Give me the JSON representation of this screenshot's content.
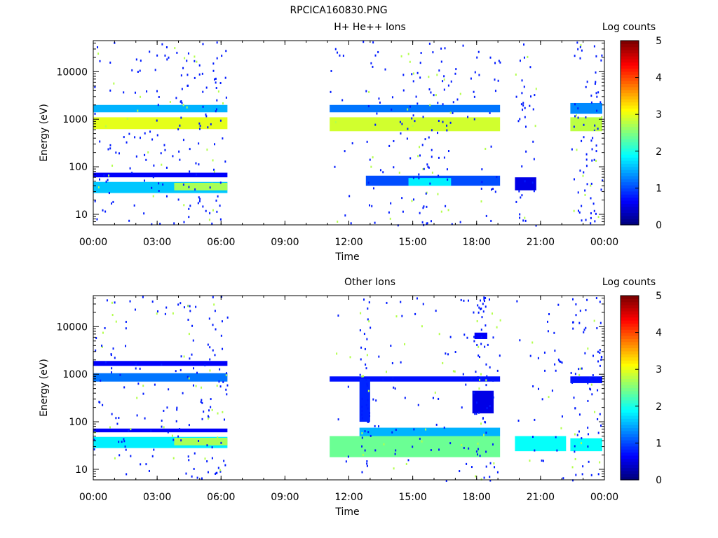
{
  "figure_title": "RPCICA160830.PNG",
  "chart_data": [
    {
      "type": "heatmap",
      "title": "H+ He++ Ions",
      "xlabel": "Time",
      "ylabel": "Energy (eV)",
      "x_ticks": [
        "00:00",
        "03:00",
        "06:00",
        "09:00",
        "12:00",
        "15:00",
        "18:00",
        "21:00",
        "00:00"
      ],
      "y_ticks": [
        "10",
        "100",
        "1000",
        "10000"
      ],
      "y_scale": "log",
      "ylim": [
        6,
        45000
      ],
      "xlim_hours": [
        0,
        24
      ],
      "colorbar": {
        "label": "Log counts",
        "ticks": [
          "0",
          "1",
          "2",
          "3",
          "4",
          "5"
        ],
        "range": [
          0,
          5
        ]
      },
      "bands": [
        {
          "t0": 0.0,
          "t1": 6.3,
          "e0": 1400,
          "e1": 2000,
          "level": 1.5
        },
        {
          "t0": 0.0,
          "t1": 6.3,
          "e0": 620,
          "e1": 1100,
          "level": 3.0
        },
        {
          "t0": 0.0,
          "t1": 6.3,
          "e0": 28,
          "e1": 48,
          "level": 1.6
        },
        {
          "t0": 3.8,
          "t1": 6.3,
          "e0": 32,
          "e1": 46,
          "level": 2.7
        },
        {
          "t0": 0.0,
          "t1": 6.3,
          "e0": 60,
          "e1": 75,
          "level": 0.6
        },
        {
          "t0": 11.1,
          "t1": 19.1,
          "e0": 1400,
          "e1": 2000,
          "level": 1.2
        },
        {
          "t0": 11.1,
          "t1": 19.1,
          "e0": 560,
          "e1": 1100,
          "level": 2.9
        },
        {
          "t0": 12.8,
          "t1": 19.1,
          "e0": 40,
          "e1": 65,
          "level": 1.0
        },
        {
          "t0": 14.8,
          "t1": 16.8,
          "e0": 40,
          "e1": 58,
          "level": 1.8
        },
        {
          "t0": 19.8,
          "t1": 20.8,
          "e0": 32,
          "e1": 60,
          "level": 0.5
        },
        {
          "t0": 22.4,
          "t1": 23.9,
          "e0": 1300,
          "e1": 2200,
          "level": 1.3
        },
        {
          "t0": 22.4,
          "t1": 23.9,
          "e0": 560,
          "e1": 1100,
          "level": 2.8
        }
      ]
    },
    {
      "type": "heatmap",
      "title": "Other Ions",
      "xlabel": "Time",
      "ylabel": "Energy (eV)",
      "x_ticks": [
        "00:00",
        "03:00",
        "06:00",
        "09:00",
        "12:00",
        "15:00",
        "18:00",
        "21:00",
        "00:00"
      ],
      "y_ticks": [
        "10",
        "100",
        "1000",
        "10000"
      ],
      "y_scale": "log",
      "ylim": [
        6,
        45000
      ],
      "xlim_hours": [
        0,
        24
      ],
      "colorbar": {
        "label": "Log counts",
        "ticks": [
          "0",
          "1",
          "2",
          "3",
          "4",
          "5"
        ],
        "range": [
          0,
          5
        ]
      },
      "bands": [
        {
          "t0": 0.0,
          "t1": 6.3,
          "e0": 1500,
          "e1": 1900,
          "level": 0.6
        },
        {
          "t0": 0.0,
          "t1": 6.3,
          "e0": 700,
          "e1": 1050,
          "level": 1.2
        },
        {
          "t0": 0.0,
          "t1": 6.3,
          "e0": 28,
          "e1": 48,
          "level": 1.8
        },
        {
          "t0": 3.8,
          "t1": 6.3,
          "e0": 32,
          "e1": 46,
          "level": 2.7
        },
        {
          "t0": 0.0,
          "t1": 6.3,
          "e0": 60,
          "e1": 72,
          "level": 0.6
        },
        {
          "t0": 11.1,
          "t1": 19.1,
          "e0": 700,
          "e1": 900,
          "level": 0.7
        },
        {
          "t0": 11.1,
          "t1": 19.1,
          "e0": 18,
          "e1": 50,
          "level": 2.4
        },
        {
          "t0": 12.5,
          "t1": 19.1,
          "e0": 50,
          "e1": 75,
          "level": 1.5
        },
        {
          "t0": 12.5,
          "t1": 13.0,
          "e0": 100,
          "e1": 800,
          "level": 0.8
        },
        {
          "t0": 17.8,
          "t1": 18.8,
          "e0": 150,
          "e1": 450,
          "level": 0.5
        },
        {
          "t0": 17.9,
          "t1": 18.5,
          "e0": 5500,
          "e1": 7500,
          "level": 0.6
        },
        {
          "t0": 19.8,
          "t1": 22.2,
          "e0": 24,
          "e1": 50,
          "level": 1.9
        },
        {
          "t0": 22.4,
          "t1": 23.9,
          "e0": 650,
          "e1": 900,
          "level": 0.7
        },
        {
          "t0": 22.4,
          "t1": 23.9,
          "e0": 24,
          "e1": 45,
          "level": 1.9
        }
      ]
    }
  ]
}
